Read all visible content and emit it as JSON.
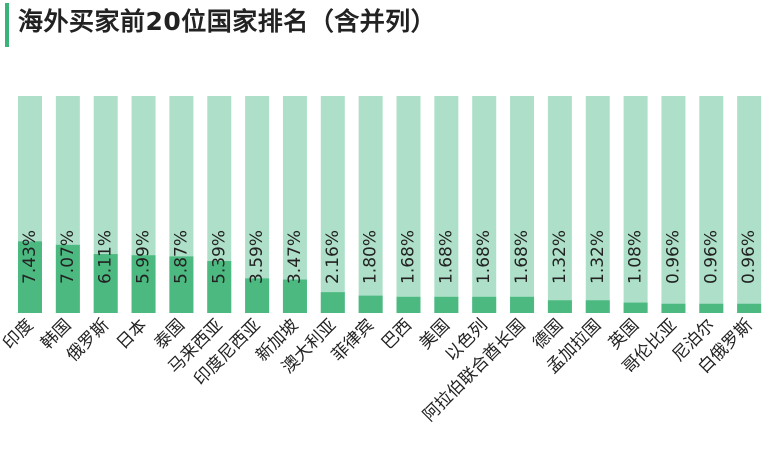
{
  "title": "海外买家前20位国家排名（含并列）",
  "colors": {
    "track": "#aee0c9",
    "bar": "#4cb981",
    "accent": "#3bb27a",
    "text": "#222222"
  },
  "chart_data": {
    "type": "bar",
    "title": "海外买家前20位国家排名（含并列）",
    "xlabel": "",
    "ylabel": "",
    "ylim": [
      0,
      22.5
    ],
    "categories": [
      "印度",
      "韩国",
      "俄罗斯",
      "日本",
      "泰国",
      "马来西亚",
      "印度尼西亚",
      "新加坡",
      "澳大利亚",
      "菲律宾",
      "巴西",
      "美国",
      "以色列",
      "阿拉伯联合酋长国",
      "德国",
      "孟加拉国",
      "英国",
      "哥伦比亚",
      "尼泊尔",
      "白俄罗斯"
    ],
    "values": [
      7.43,
      7.07,
      6.11,
      5.99,
      5.87,
      5.39,
      3.59,
      3.47,
      2.16,
      1.8,
      1.68,
      1.68,
      1.68,
      1.68,
      1.32,
      1.32,
      1.08,
      0.96,
      0.96,
      0.96
    ],
    "labels": [
      "7.43%",
      "7.07%",
      "6.11%",
      "5.99%",
      "5.87%",
      "5.39%",
      "3.59%",
      "3.47%",
      "2.16%",
      "1.80%",
      "1.68%",
      "1.68%",
      "1.68%",
      "1.68%",
      "1.32%",
      "1.32%",
      "1.08%",
      "0.96%",
      "0.96%",
      "0.96%"
    ]
  }
}
